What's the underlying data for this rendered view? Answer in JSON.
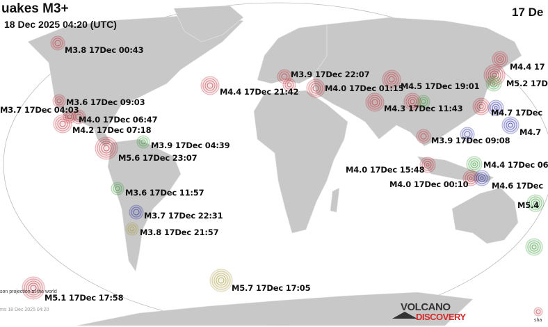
{
  "header": {
    "title": "uakes M3+",
    "subtitle": "18 Dec 2025 04:20 (UTC)",
    "date_right": "17 De"
  },
  "footer": {
    "projection_note": "son projection of the world",
    "timestamp": "ms 18 Dec 2025 04:20",
    "share_text": "sha"
  },
  "logo": {
    "line1": "VOLCANO",
    "line2": "DISCOVERY"
  },
  "colors": {
    "land": "#c8c8c8",
    "ocean": "#ffffff",
    "recent": "#c0303a",
    "green": "#3a9a3a",
    "blue": "#2a2aa0",
    "olive": "#a89a40"
  },
  "quakes": [
    {
      "label": "M3.8 17Dec 00:43",
      "color": "red"
    },
    {
      "label": "M4.4 17Dec 21:42",
      "color": "red"
    },
    {
      "label": "M3.9 17Dec 22:07",
      "color": "red"
    },
    {
      "label": "M4.0 17Dec 01:15",
      "color": "red"
    },
    {
      "label": "M4.5 17Dec 19:01",
      "color": "red"
    },
    {
      "label": "M4.3 17Dec 11:43",
      "color": "red"
    },
    {
      "label": "M4.4 17",
      "color": "red"
    },
    {
      "label": "M5.2 17D",
      "color": "green"
    },
    {
      "label": "M4.7 17Dec",
      "color": "blue"
    },
    {
      "label": "M4.7",
      "color": "blue"
    },
    {
      "label": "M3.9 17Dec 09:08",
      "color": "blue"
    },
    {
      "label": "M4.0 17Dec 15:48",
      "color": "red"
    },
    {
      "label": "M4.4 17Dec 06",
      "color": "green"
    },
    {
      "label": "M4.0 17Dec 00:10",
      "color": "red"
    },
    {
      "label": "M4.6 17Dec",
      "color": "blue"
    },
    {
      "label": "M5.4",
      "color": "green"
    },
    {
      "label": "M3.6 17Dec 09:03",
      "color": "red"
    },
    {
      "label": "M3.7 17Dec 04:03",
      "color": "red"
    },
    {
      "label": "M4.0 17Dec 06:47",
      "color": "red"
    },
    {
      "label": "M4.2 17Dec 07:18",
      "color": "red"
    },
    {
      "label": "M3.9 17Dec 04:39",
      "color": "green"
    },
    {
      "label": "M5.6 17Dec 23:07",
      "color": "red"
    },
    {
      "label": "M3.6 17Dec 11:57",
      "color": "green"
    },
    {
      "label": "M3.7 17Dec 22:31",
      "color": "blue"
    },
    {
      "label": "M3.8 17Dec 21:57",
      "color": "olive"
    },
    {
      "label": "M5.1 17Dec 17:58",
      "color": "red"
    },
    {
      "label": "M5.7 17Dec 17:05",
      "color": "olive"
    }
  ]
}
